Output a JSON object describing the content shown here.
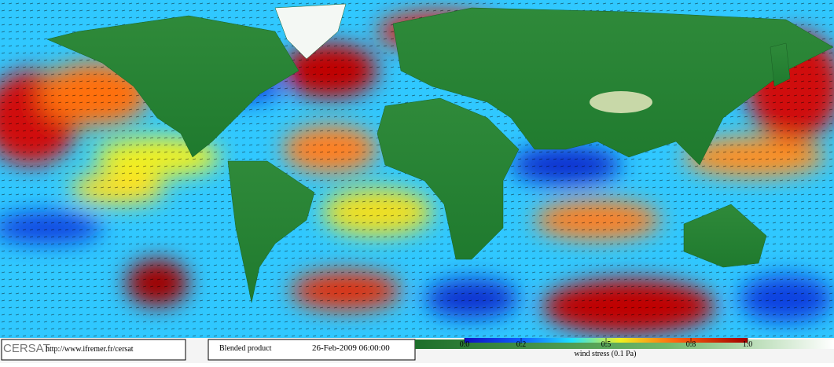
{
  "logo": {
    "name": "CERSAT",
    "url": "http://www.ifremer.fr/cersat"
  },
  "product": "Blended product",
  "date": "26-Feb-2009 06:00:00",
  "colorbar": {
    "label": "wind stress (0.1 Pa)",
    "lim": [
      0,
      1
    ],
    "ticks": [
      {
        "value": 0,
        "label": "0.0"
      },
      0.2,
      0.5,
      0.8,
      {
        "value": 1,
        "label": "1.0"
      }
    ]
  }
}
